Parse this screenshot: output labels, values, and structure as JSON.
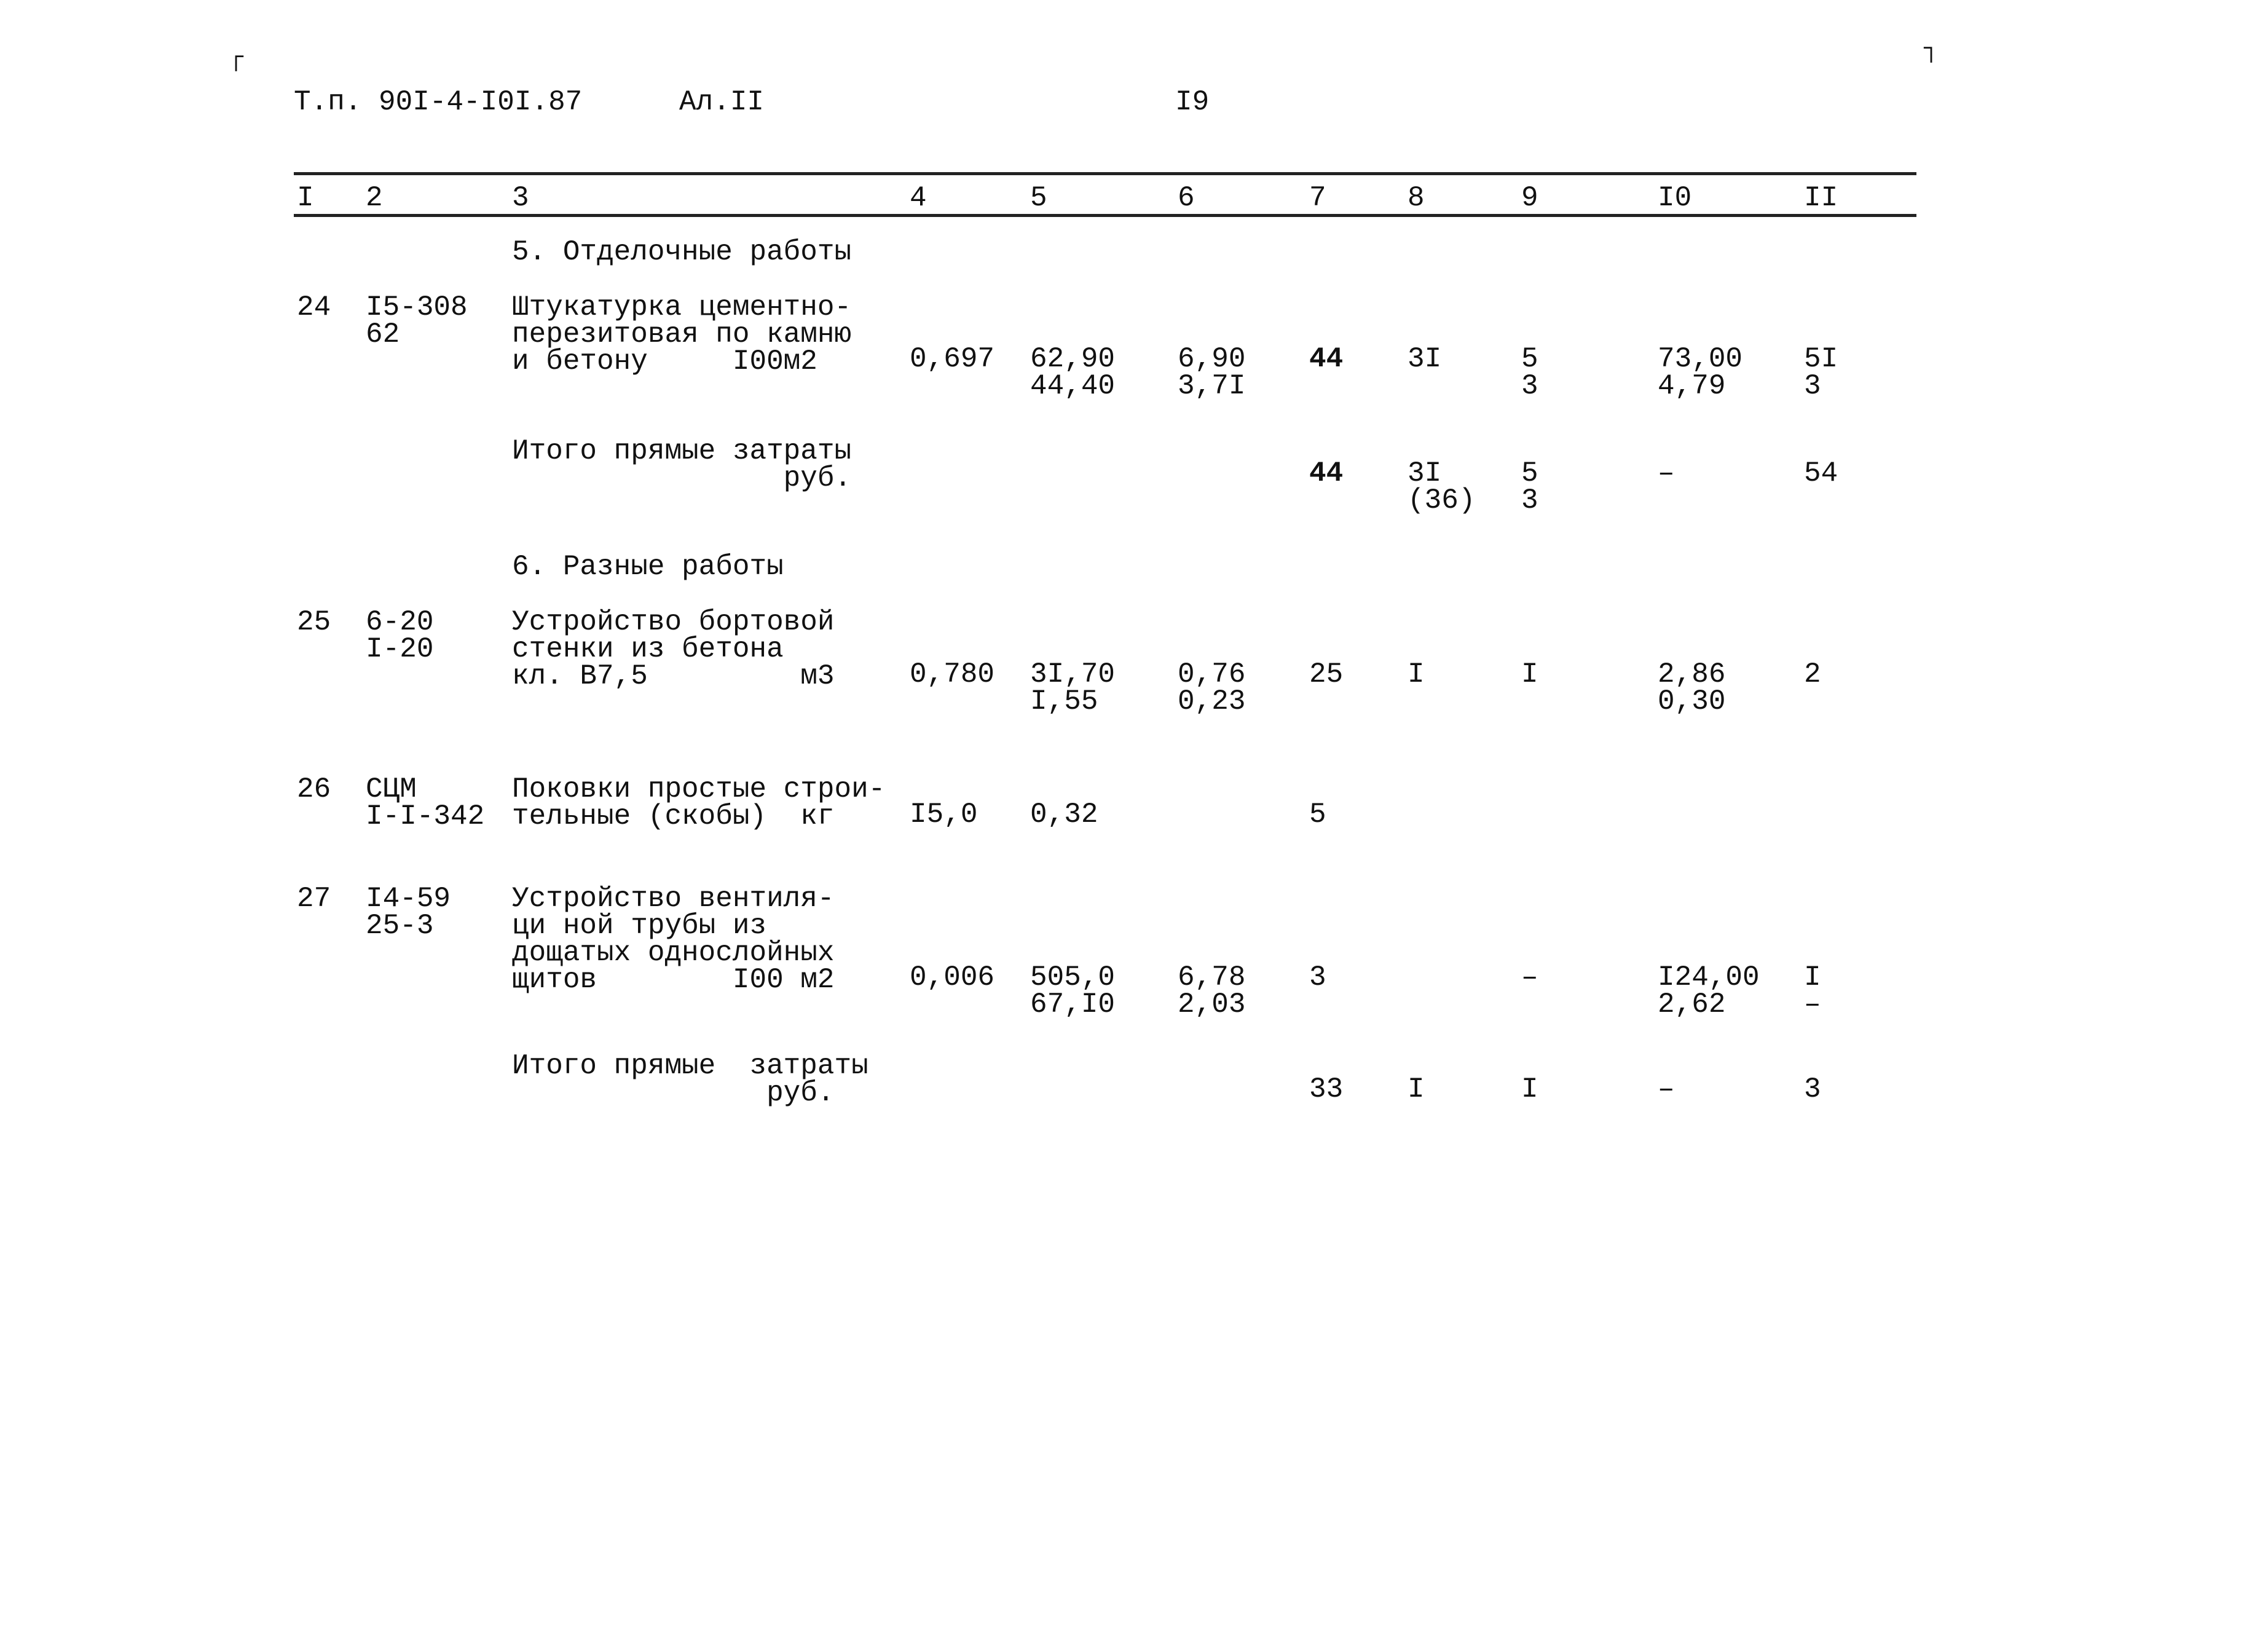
{
  "header": {
    "doc_code": "Т.п. 90I-4-I0I.87",
    "album": "Ал.II",
    "page_number": "I9"
  },
  "columns": [
    "I",
    "2",
    "3",
    "4",
    "5",
    "6",
    "7",
    "8",
    "9",
    "I0",
    "II"
  ],
  "sections": [
    {
      "title": "5. Отделочные работы"
    },
    {
      "title": "6. Разные работы"
    }
  ],
  "rows": [
    {
      "num": "24",
      "code": "I5-308\n62",
      "name": "Штукатурка цементно-\nперезитовая по камню\nи бетону     I00м2",
      "c4": "0,697",
      "c5": "62,90\n44,40",
      "c6": "6,90\n3,7I",
      "c7": "44",
      "c8": "3I",
      "c9": "5\n3",
      "c10": "73,00\n4,79",
      "c11": "5I\n3"
    },
    {
      "num": "",
      "code": "",
      "name": "Итого прямые затраты\n                руб.",
      "c4": "",
      "c5": "",
      "c6": "",
      "c7": "44",
      "c8": "3I\n(36)",
      "c9": "5\n3",
      "c10": "–",
      "c11": "54"
    },
    {
      "num": "25",
      "code": "6-20\nI-20",
      "name": "Устройство бортовой\nстенки из бетона\nкл. В7,5         м3",
      "c4": "0,780",
      "c5": "3I,70\nI,55",
      "c6": "0,76\n0,23",
      "c7": "25",
      "c8": "I",
      "c9": "I",
      "c10": "2,86\n0,30",
      "c11": "2"
    },
    {
      "num": "26",
      "code": "СЦМ\nI-I-342",
      "name": "Поковки простые строи-\nтельные (скобы)  кг",
      "c4": "I5,0",
      "c5": "0,32",
      "c6": "",
      "c7": "5",
      "c8": "",
      "c9": "",
      "c10": "",
      "c11": ""
    },
    {
      "num": "27",
      "code": "I4-59\n25-3",
      "name": "Устройство вентиля-\nци ной трубы из\nдощатых однослойных\nщитов        I00 м2",
      "c4": "0,006",
      "c5": "505,0\n67,I0",
      "c6": "6,78\n2,03",
      "c7": "3",
      "c8": "",
      "c9": "–",
      "c10": "I24,00\n2,62",
      "c11": "I\n–"
    },
    {
      "num": "",
      "code": "",
      "name": "Итого прямые  затраты\n               руб.",
      "c4": "",
      "c5": "",
      "c6": "",
      "c7": "33",
      "c8": "I",
      "c9": "I",
      "c10": "–",
      "c11": "3"
    }
  ]
}
